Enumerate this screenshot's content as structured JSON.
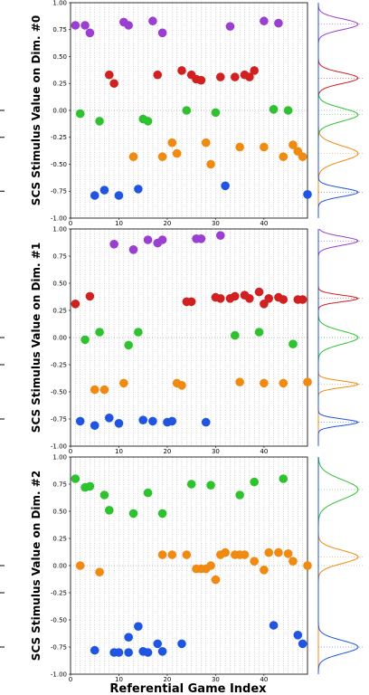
{
  "chart_data": {
    "type": "scatter",
    "xlabel": "Referential Game Index",
    "ylabels": [
      "SCS Stimulus Value on Dim. #0",
      "SCS Stimulus Value on Dim. #1",
      "SCS Stimulus Value on Dim. #2"
    ],
    "xlim": [
      0,
      49
    ],
    "ylim": [
      -1.0,
      1.0
    ],
    "yticks": [
      "1.00",
      "0.75",
      "0.50",
      "0.25",
      "0.00",
      "-0.25",
      "-0.50",
      "-0.75",
      "-1.00"
    ],
    "xticks": [
      "0",
      "10",
      "20",
      "30",
      "40"
    ],
    "grid": "vertical dotted lines at every integer index; dotted horizontal line at 0",
    "colors": {
      "purple": "#9a3fd0",
      "red": "#d02020",
      "green": "#2ec22e",
      "orange": "#f08a10",
      "blue": "#1f55e0"
    },
    "panels": [
      {
        "ylabel": "SCS Stimulus Value on Dim. #0",
        "series": [
          {
            "color": "purple",
            "points": [
              [
                1,
                0.79
              ],
              [
                3,
                0.79
              ],
              [
                4,
                0.72
              ],
              [
                11,
                0.82
              ],
              [
                12,
                0.79
              ],
              [
                17,
                0.83
              ],
              [
                19,
                0.72
              ],
              [
                33,
                0.78
              ],
              [
                40,
                0.83
              ],
              [
                43,
                0.81
              ]
            ]
          },
          {
            "color": "red",
            "points": [
              [
                8,
                0.33
              ],
              [
                9,
                0.25
              ],
              [
                18,
                0.33
              ],
              [
                23,
                0.37
              ],
              [
                25,
                0.33
              ],
              [
                26,
                0.29
              ],
              [
                27,
                0.28
              ],
              [
                31,
                0.31
              ],
              [
                34,
                0.31
              ],
              [
                36,
                0.33
              ],
              [
                37,
                0.31
              ],
              [
                38,
                0.37
              ]
            ]
          },
          {
            "color": "green",
            "points": [
              [
                2,
                -0.03
              ],
              [
                6,
                -0.1
              ],
              [
                15,
                -0.08
              ],
              [
                16,
                -0.1
              ],
              [
                24,
                0.0
              ],
              [
                30,
                -0.02
              ],
              [
                42,
                0.01
              ],
              [
                45,
                0.0
              ]
            ]
          },
          {
            "color": "orange",
            "points": [
              [
                13,
                -0.43
              ],
              [
                19,
                -0.43
              ],
              [
                21,
                -0.3
              ],
              [
                22,
                -0.4
              ],
              [
                28,
                -0.3
              ],
              [
                29,
                -0.5
              ],
              [
                35,
                -0.34
              ],
              [
                40,
                -0.34
              ],
              [
                44,
                -0.43
              ],
              [
                46,
                -0.32
              ],
              [
                47,
                -0.38
              ],
              [
                48,
                -0.43
              ]
            ]
          },
          {
            "color": "blue",
            "points": [
              [
                5,
                -0.79
              ],
              [
                7,
                -0.74
              ],
              [
                10,
                -0.79
              ],
              [
                14,
                -0.73
              ],
              [
                32,
                -0.7
              ],
              [
                49,
                -0.78
              ]
            ]
          }
        ],
        "density_peaks": [
          {
            "color": "purple",
            "center": 0.8,
            "width": 0.05
          },
          {
            "color": "red",
            "center": 0.3,
            "width": 0.05
          },
          {
            "color": "green",
            "center": -0.04,
            "width": 0.06
          },
          {
            "color": "orange",
            "center": -0.4,
            "width": 0.07
          },
          {
            "color": "blue",
            "center": -0.76,
            "width": 0.04
          }
        ]
      },
      {
        "ylabel": "SCS Stimulus Value on Dim. #1",
        "series": [
          {
            "color": "purple",
            "points": [
              [
                9,
                0.86
              ],
              [
                13,
                0.81
              ],
              [
                16,
                0.9
              ],
              [
                18,
                0.87
              ],
              [
                19,
                0.9
              ],
              [
                26,
                0.91
              ],
              [
                27,
                0.91
              ],
              [
                31,
                0.94
              ]
            ]
          },
          {
            "color": "red",
            "points": [
              [
                1,
                0.31
              ],
              [
                4,
                0.38
              ],
              [
                24,
                0.33
              ],
              [
                25,
                0.33
              ],
              [
                30,
                0.37
              ],
              [
                31,
                0.36
              ],
              [
                33,
                0.36
              ],
              [
                34,
                0.38
              ],
              [
                36,
                0.39
              ],
              [
                37,
                0.36
              ],
              [
                39,
                0.42
              ],
              [
                40,
                0.31
              ],
              [
                41,
                0.36
              ],
              [
                43,
                0.37
              ],
              [
                44,
                0.35
              ],
              [
                47,
                0.35
              ],
              [
                48,
                0.35
              ]
            ]
          },
          {
            "color": "green",
            "points": [
              [
                3,
                -0.02
              ],
              [
                6,
                0.05
              ],
              [
                12,
                -0.07
              ],
              [
                14,
                0.05
              ],
              [
                34,
                0.02
              ],
              [
                39,
                0.05
              ],
              [
                46,
                -0.06
              ]
            ]
          },
          {
            "color": "orange",
            "points": [
              [
                5,
                -0.48
              ],
              [
                7,
                -0.48
              ],
              [
                11,
                -0.42
              ],
              [
                22,
                -0.42
              ],
              [
                23,
                -0.44
              ],
              [
                35,
                -0.41
              ],
              [
                40,
                -0.42
              ],
              [
                44,
                -0.42
              ],
              [
                49,
                -0.41
              ]
            ]
          },
          {
            "color": "blue",
            "points": [
              [
                2,
                -0.77
              ],
              [
                5,
                -0.81
              ],
              [
                8,
                -0.74
              ],
              [
                10,
                -0.79
              ],
              [
                15,
                -0.76
              ],
              [
                17,
                -0.77
              ],
              [
                20,
                -0.78
              ],
              [
                21,
                -0.77
              ],
              [
                28,
                -0.78
              ]
            ]
          }
        ],
        "density_peaks": [
          {
            "color": "purple",
            "center": 0.89,
            "width": 0.04
          },
          {
            "color": "red",
            "center": 0.36,
            "width": 0.03
          },
          {
            "color": "green",
            "center": 0.0,
            "width": 0.06
          },
          {
            "color": "orange",
            "center": -0.43,
            "width": 0.03
          },
          {
            "color": "blue",
            "center": -0.78,
            "width": 0.03
          }
        ]
      },
      {
        "ylabel": "SCS Stimulus Value on Dim. #2",
        "series": [
          {
            "color": "green",
            "points": [
              [
                1,
                0.8
              ],
              [
                3,
                0.72
              ],
              [
                4,
                0.73
              ],
              [
                7,
                0.65
              ],
              [
                8,
                0.51
              ],
              [
                13,
                0.48
              ],
              [
                16,
                0.67
              ],
              [
                19,
                0.48
              ],
              [
                25,
                0.75
              ],
              [
                29,
                0.74
              ],
              [
                35,
                0.65
              ],
              [
                38,
                0.77
              ],
              [
                44,
                0.8
              ]
            ]
          },
          {
            "color": "orange",
            "points": [
              [
                2,
                0.0
              ],
              [
                6,
                -0.06
              ],
              [
                19,
                0.1
              ],
              [
                21,
                0.1
              ],
              [
                24,
                0.1
              ],
              [
                26,
                -0.03
              ],
              [
                27,
                -0.03
              ],
              [
                28,
                -0.03
              ],
              [
                29,
                0.0
              ],
              [
                30,
                -0.13
              ],
              [
                31,
                0.1
              ],
              [
                32,
                0.12
              ],
              [
                34,
                0.1
              ],
              [
                35,
                0.1
              ],
              [
                36,
                0.1
              ],
              [
                38,
                0.04
              ],
              [
                40,
                -0.04
              ],
              [
                41,
                0.12
              ],
              [
                43,
                0.12
              ],
              [
                45,
                0.11
              ],
              [
                46,
                0.04
              ],
              [
                49,
                0.0
              ]
            ]
          },
          {
            "color": "blue",
            "points": [
              [
                5,
                -0.78
              ],
              [
                9,
                -0.8
              ],
              [
                10,
                -0.8
              ],
              [
                12,
                -0.66
              ],
              [
                12,
                -0.8
              ],
              [
                14,
                -0.56
              ],
              [
                15,
                -0.79
              ],
              [
                16,
                -0.8
              ],
              [
                18,
                -0.72
              ],
              [
                19,
                -0.79
              ],
              [
                23,
                -0.72
              ],
              [
                42,
                -0.55
              ],
              [
                47,
                -0.64
              ],
              [
                48,
                -0.72
              ]
            ]
          }
        ],
        "density_peaks": [
          {
            "color": "green",
            "center": 0.7,
            "width": 0.09
          },
          {
            "color": "orange",
            "center": 0.08,
            "width": 0.06
          },
          {
            "color": "blue",
            "center": -0.75,
            "width": 0.06
          }
        ]
      }
    ]
  }
}
